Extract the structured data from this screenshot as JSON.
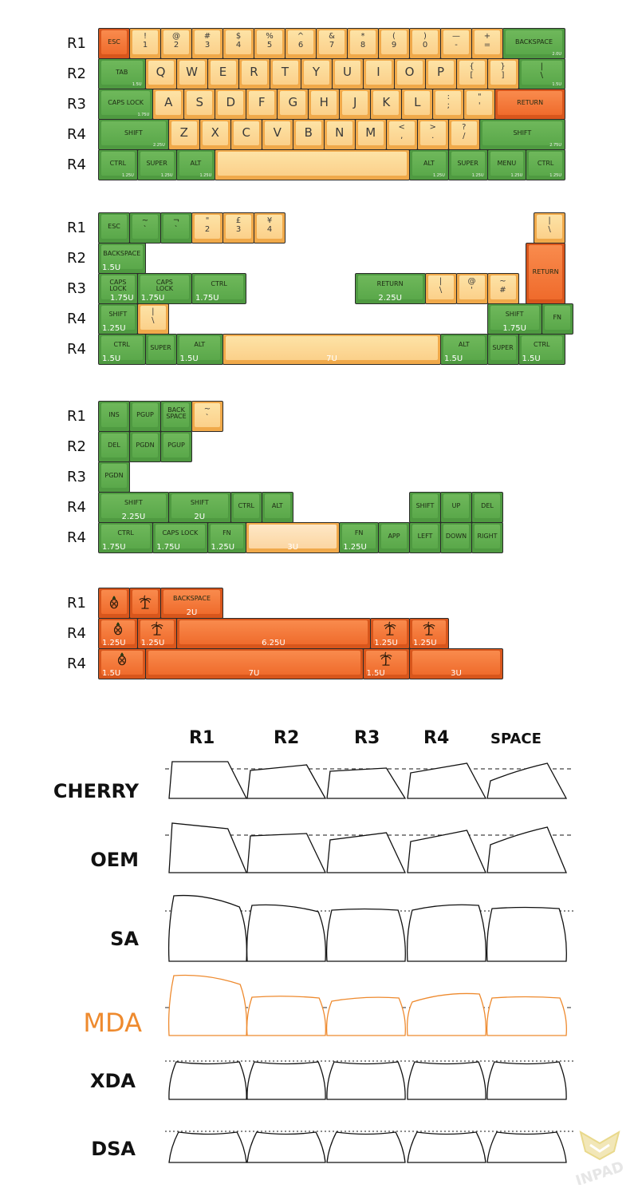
{
  "sections": [
    {
      "id": "layout-60",
      "row_labels": [
        "R1",
        "R2",
        "R3",
        "R4",
        "R4"
      ],
      "rows": [
        [
          {
            "c": "o",
            "w": 1,
            "legend": "ESC",
            "size": "small"
          },
          {
            "c": "y",
            "w": 1,
            "legend": "!\n1",
            "size": "dual"
          },
          {
            "c": "y",
            "w": 1,
            "legend": "@\n2",
            "size": "dual"
          },
          {
            "c": "y",
            "w": 1,
            "legend": "#\n3",
            "size": "dual"
          },
          {
            "c": "y",
            "w": 1,
            "legend": "$\n4",
            "size": "dual"
          },
          {
            "c": "y",
            "w": 1,
            "legend": "%\n5",
            "size": "dual"
          },
          {
            "c": "y",
            "w": 1,
            "legend": "^\n6",
            "size": "dual"
          },
          {
            "c": "y",
            "w": 1,
            "legend": "&\n7",
            "size": "dual"
          },
          {
            "c": "y",
            "w": 1,
            "legend": "*\n8",
            "size": "dual"
          },
          {
            "c": "y",
            "w": 1,
            "legend": "(\n9",
            "size": "dual"
          },
          {
            "c": "y",
            "w": 1,
            "legend": ")\n0",
            "size": "dual"
          },
          {
            "c": "y",
            "w": 1,
            "legend": "—\n-",
            "size": "dual"
          },
          {
            "c": "y",
            "w": 1,
            "legend": "+\n=",
            "size": "dual"
          },
          {
            "c": "g",
            "w": 2,
            "legend": "BACKSPACE",
            "size": "small",
            "unit": "2.0U",
            "tiny": true
          }
        ],
        [
          {
            "c": "g",
            "w": 1.5,
            "legend": "TAB",
            "size": "small",
            "unit": "1.5U",
            "tiny": true
          },
          {
            "c": "y",
            "w": 1,
            "legend": "Q",
            "size": "big"
          },
          {
            "c": "y",
            "w": 1,
            "legend": "W",
            "size": "big"
          },
          {
            "c": "y",
            "w": 1,
            "legend": "E",
            "size": "big"
          },
          {
            "c": "y",
            "w": 1,
            "legend": "R",
            "size": "big"
          },
          {
            "c": "y",
            "w": 1,
            "legend": "T",
            "size": "big"
          },
          {
            "c": "y",
            "w": 1,
            "legend": "Y",
            "size": "big"
          },
          {
            "c": "y",
            "w": 1,
            "legend": "U",
            "size": "big"
          },
          {
            "c": "y",
            "w": 1,
            "legend": "I",
            "size": "big"
          },
          {
            "c": "y",
            "w": 1,
            "legend": "O",
            "size": "big"
          },
          {
            "c": "y",
            "w": 1,
            "legend": "P",
            "size": "big"
          },
          {
            "c": "y",
            "w": 1,
            "legend": "{\n[",
            "size": "dual"
          },
          {
            "c": "y",
            "w": 1,
            "legend": "}\n]",
            "size": "dual"
          },
          {
            "c": "g",
            "w": 1.5,
            "legend": "|\n\\",
            "size": "dual",
            "unit": "1.5U",
            "tiny": true
          }
        ],
        [
          {
            "c": "g",
            "w": 1.75,
            "legend": "CAPS LOCK",
            "size": "small",
            "unit": "1.75U",
            "tiny": true
          },
          {
            "c": "y",
            "w": 1,
            "legend": "A",
            "size": "big"
          },
          {
            "c": "y",
            "w": 1,
            "legend": "S",
            "size": "big"
          },
          {
            "c": "y",
            "w": 1,
            "legend": "D",
            "size": "big"
          },
          {
            "c": "y",
            "w": 1,
            "legend": "F",
            "size": "big"
          },
          {
            "c": "y",
            "w": 1,
            "legend": "G",
            "size": "big"
          },
          {
            "c": "y",
            "w": 1,
            "legend": "H",
            "size": "big"
          },
          {
            "c": "y",
            "w": 1,
            "legend": "J",
            "size": "big"
          },
          {
            "c": "y",
            "w": 1,
            "legend": "K",
            "size": "big"
          },
          {
            "c": "y",
            "w": 1,
            "legend": "L",
            "size": "big"
          },
          {
            "c": "y",
            "w": 1,
            "legend": ":\n;",
            "size": "dual"
          },
          {
            "c": "y",
            "w": 1,
            "legend": "\"\n'",
            "size": "dual"
          },
          {
            "c": "o",
            "w": 2.25,
            "legend": "RETURN",
            "size": "small"
          }
        ],
        [
          {
            "c": "g",
            "w": 2.25,
            "legend": "SHIFT",
            "size": "small",
            "unit": "2.25U",
            "tiny": true
          },
          {
            "c": "y",
            "w": 1,
            "legend": "Z",
            "size": "big"
          },
          {
            "c": "y",
            "w": 1,
            "legend": "X",
            "size": "big"
          },
          {
            "c": "y",
            "w": 1,
            "legend": "C",
            "size": "big"
          },
          {
            "c": "y",
            "w": 1,
            "legend": "V",
            "size": "big"
          },
          {
            "c": "y",
            "w": 1,
            "legend": "B",
            "size": "big"
          },
          {
            "c": "y",
            "w": 1,
            "legend": "N",
            "size": "big"
          },
          {
            "c": "y",
            "w": 1,
            "legend": "M",
            "size": "big"
          },
          {
            "c": "y",
            "w": 1,
            "legend": "<\n,",
            "size": "dual"
          },
          {
            "c": "y",
            "w": 1,
            "legend": ">\n.",
            "size": "dual"
          },
          {
            "c": "y",
            "w": 1,
            "legend": "?\n/",
            "size": "dual"
          },
          {
            "c": "g",
            "w": 2.75,
            "legend": "SHIFT",
            "size": "small",
            "unit": "2.75U",
            "tiny": true
          }
        ],
        [
          {
            "c": "g",
            "w": 1.25,
            "legend": "CTRL",
            "size": "small",
            "unit": "1.25U",
            "tiny": true
          },
          {
            "c": "g",
            "w": 1.25,
            "legend": "SUPER",
            "size": "small",
            "unit": "1.25U",
            "tiny": true
          },
          {
            "c": "g",
            "w": 1.25,
            "legend": "ALT",
            "size": "small",
            "unit": "1.25U",
            "tiny": true
          },
          {
            "c": "y",
            "w": 6.25,
            "legend": "",
            "size": "small"
          },
          {
            "c": "g",
            "w": 1.25,
            "legend": "ALT",
            "size": "small",
            "unit": "1.25U",
            "tiny": true
          },
          {
            "c": "g",
            "w": 1.25,
            "legend": "SUPER",
            "size": "small",
            "unit": "1.25U",
            "tiny": true
          },
          {
            "c": "g",
            "w": 1.25,
            "legend": "MENU",
            "size": "small",
            "unit": "1.25U",
            "tiny": true
          },
          {
            "c": "g",
            "w": 1.25,
            "legend": "CTRL",
            "size": "small",
            "unit": "1.25U",
            "tiny": true
          }
        ]
      ]
    },
    {
      "id": "iso-extras",
      "row_labels": [
        "R1",
        "R2",
        "R3",
        "R4",
        "R4"
      ],
      "rows": [
        [
          {
            "c": "g",
            "w": 1,
            "legend": "ESC",
            "size": "small"
          },
          {
            "c": "g",
            "w": 1,
            "legend": "~\n`",
            "size": "dual"
          },
          {
            "c": "g",
            "w": 1,
            "legend": "¬\n`",
            "size": "dual"
          },
          {
            "c": "y",
            "w": 1,
            "legend": "\"\n2",
            "size": "dual"
          },
          {
            "c": "y",
            "w": 1,
            "legend": "£\n3",
            "size": "dual"
          },
          {
            "c": "y",
            "w": 1,
            "legend": "¥\n4",
            "size": "dual"
          },
          {
            "gap": true,
            "w": 8
          },
          {
            "c": "y",
            "w": 1,
            "legend": "|\n\\",
            "size": "dual"
          }
        ],
        [
          {
            "c": "g",
            "w": 1.5,
            "legend": "BACKSPACE",
            "size": "small",
            "unit": "1.5U"
          },
          {
            "gap": true,
            "w": 12.25
          },
          {
            "c": "o",
            "w": 1.25,
            "legend": "RETURN",
            "size": "small",
            "tall": 2
          }
        ],
        [
          {
            "c": "g",
            "w": 1.25,
            "legend": "CAPS\nLOCK",
            "size": "small",
            "unit": "1.75U",
            "unitCenter": true,
            "wide": 1.75
          },
          {
            "c": "g",
            "w": 1.75,
            "legend": "CAPS\nLOCK",
            "size": "small",
            "unit": "1.75U"
          },
          {
            "c": "g",
            "w": 1.75,
            "legend": "CTRL",
            "size": "small",
            "unit": "1.75U"
          },
          {
            "gap": true,
            "w": 3.5
          },
          {
            "c": "g",
            "w": 2.25,
            "legend": "RETURN",
            "size": "small",
            "unit": "2.25U",
            "unitCenter": true
          },
          {
            "c": "y",
            "w": 1,
            "legend": "|\n\\",
            "size": "dual"
          },
          {
            "c": "y",
            "w": 1,
            "legend": "@\n'",
            "size": "dual"
          },
          {
            "c": "y",
            "w": 1,
            "legend": "~\n#",
            "size": "dual"
          }
        ],
        [
          {
            "c": "g",
            "w": 1.25,
            "legend": "SHIFT",
            "size": "small",
            "unit": "1.25U"
          },
          {
            "c": "y",
            "w": 1,
            "legend": "|\n\\",
            "size": "dual"
          },
          {
            "gap": true,
            "w": 10.25
          },
          {
            "c": "g",
            "w": 1.75,
            "legend": "SHIFT",
            "size": "small",
            "unit": "1.75U",
            "unitCenter": true
          },
          {
            "c": "g",
            "w": 1,
            "legend": "FN",
            "size": "small"
          }
        ],
        [
          {
            "c": "g",
            "w": 1.5,
            "legend": "CTRL",
            "size": "small",
            "unit": "1.5U"
          },
          {
            "c": "g",
            "w": 1,
            "legend": "SUPER",
            "size": "small"
          },
          {
            "c": "g",
            "w": 1.5,
            "legend": "ALT",
            "size": "small",
            "unit": "1.5U"
          },
          {
            "c": "y",
            "w": 7,
            "legend": "",
            "size": "small",
            "unit": "7U",
            "unitCenter": true
          },
          {
            "c": "g",
            "w": 1.5,
            "legend": "ALT",
            "size": "small",
            "unit": "1.5U"
          },
          {
            "c": "g",
            "w": 1,
            "legend": "SUPER",
            "size": "small"
          },
          {
            "c": "g",
            "w": 1.5,
            "legend": "CTRL",
            "size": "small",
            "unit": "1.5U"
          }
        ]
      ]
    },
    {
      "id": "extras-nav",
      "row_labels": [
        "R1",
        "R2",
        "R3",
        "R4",
        "R4"
      ],
      "rows": [
        [
          {
            "c": "g",
            "w": 1,
            "legend": "INS",
            "size": "small"
          },
          {
            "c": "g",
            "w": 1,
            "legend": "PGUP",
            "size": "small"
          },
          {
            "c": "g",
            "w": 1,
            "legend": "BACK\nSPACE",
            "size": "small"
          },
          {
            "c": "y",
            "w": 1,
            "legend": "~\n`",
            "size": "dual"
          }
        ],
        [
          {
            "c": "g",
            "w": 1,
            "legend": "DEL",
            "size": "small"
          },
          {
            "c": "g",
            "w": 1,
            "legend": "PGDN",
            "size": "small"
          },
          {
            "c": "g",
            "w": 1,
            "legend": "PGUP",
            "size": "small"
          }
        ],
        [
          {
            "c": "g",
            "w": 1,
            "legend": "PGDN",
            "size": "small"
          }
        ],
        [
          {
            "c": "g",
            "w": 2.25,
            "legend": "SHIFT",
            "size": "small",
            "unit": "2.25U",
            "unitCenter": true
          },
          {
            "c": "g",
            "w": 2,
            "legend": "SHIFT",
            "size": "small",
            "unit": "2U",
            "unitCenter": true
          },
          {
            "c": "g",
            "w": 1,
            "legend": "CTRL",
            "size": "small"
          },
          {
            "c": "g",
            "w": 1,
            "legend": "ALT",
            "size": "small"
          },
          {
            "gap": true,
            "w": 3.75
          },
          {
            "c": "g",
            "w": 1,
            "legend": "SHIFT",
            "size": "small"
          },
          {
            "c": "g",
            "w": 1,
            "legend": "UP",
            "size": "small"
          },
          {
            "c": "g",
            "w": 1,
            "legend": "DEL",
            "size": "small"
          }
        ],
        [
          {
            "c": "g",
            "w": 1.75,
            "legend": "CTRL",
            "size": "small",
            "unit": "1.75U"
          },
          {
            "c": "g",
            "w": 1.75,
            "legend": "CAPS LOCK",
            "size": "small",
            "unit": "1.75U"
          },
          {
            "c": "g",
            "w": 1.25,
            "legend": "FN",
            "size": "small",
            "unit": "1.25U"
          },
          {
            "c": "y",
            "w": 3,
            "legend": "",
            "size": "small",
            "unit": "3U",
            "unitCenter": true,
            "light": true
          },
          {
            "c": "g",
            "w": 1.25,
            "legend": "FN",
            "size": "small",
            "unit": "1.25U"
          },
          {
            "c": "g",
            "w": 1,
            "legend": "APP",
            "size": "small"
          },
          {
            "c": "g",
            "w": 1,
            "legend": "LEFT",
            "size": "small"
          },
          {
            "c": "g",
            "w": 1,
            "legend": "DOWN",
            "size": "small"
          },
          {
            "c": "g",
            "w": 1,
            "legend": "RIGHT",
            "size": "small"
          }
        ]
      ]
    },
    {
      "id": "novelties",
      "row_labels": [
        "R1",
        "R4",
        "R4"
      ],
      "rows": [
        [
          {
            "c": "o",
            "w": 1,
            "icon": "pineapple-icon"
          },
          {
            "c": "o",
            "w": 1,
            "icon": "palm-tree-icon"
          },
          {
            "c": "o",
            "w": 2,
            "legend": "BACKSPACE",
            "size": "small",
            "unit": "2U",
            "unitCenter": true
          }
        ],
        [
          {
            "c": "o",
            "w": 1.25,
            "icon": "pineapple-icon",
            "unit": "1.25U"
          },
          {
            "c": "o",
            "w": 1.25,
            "icon": "palm-tree-icon",
            "unit": "1.25U"
          },
          {
            "c": "o",
            "w": 6.25,
            "legend": "",
            "size": "small",
            "unit": "6.25U",
            "unitCenter": true
          },
          {
            "c": "o",
            "w": 1.25,
            "icon": "palm-tree-icon",
            "unit": "1.25U"
          },
          {
            "c": "o",
            "w": 1.25,
            "icon": "palm-tree-icon",
            "unit": "1.25U"
          }
        ],
        [
          {
            "c": "o",
            "w": 1.5,
            "icon": "pineapple-icon",
            "unit": "1.5U"
          },
          {
            "c": "o",
            "w": 7,
            "legend": "",
            "size": "small",
            "unit": "7U",
            "unitCenter": true
          },
          {
            "c": "o",
            "w": 1.5,
            "icon": "palm-tree-icon",
            "unit": "1.5U"
          },
          {
            "c": "o",
            "w": 3,
            "legend": "",
            "size": "small",
            "unit": "3U",
            "unitCenter": true
          }
        ]
      ]
    }
  ],
  "profiles": {
    "columns": [
      "R1",
      "R2",
      "R3",
      "R4",
      "SPACE"
    ],
    "names": [
      "CHERRY",
      "OEM",
      "SA",
      "MDA",
      "XDA",
      "DSA"
    ],
    "highlight": "MDA",
    "highlight_color": "#ee8a2e"
  },
  "watermark": "INPAD",
  "colors": {
    "green": "#5aa84a",
    "yellow": "#fbd08a",
    "orange": "#ef6b2c"
  }
}
